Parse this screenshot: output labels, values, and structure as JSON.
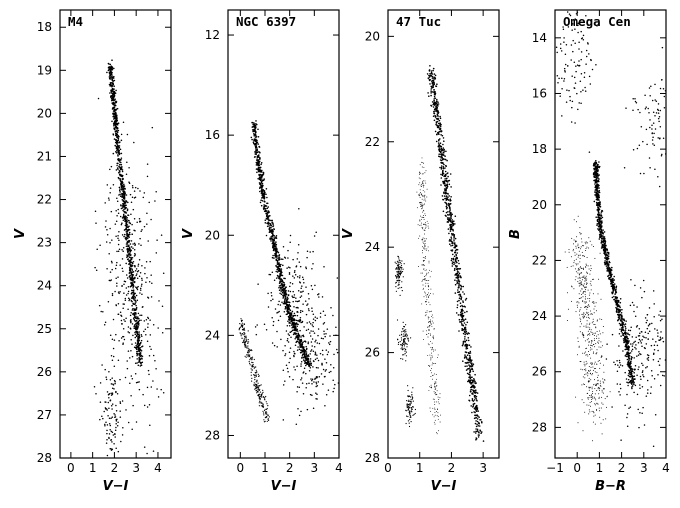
{
  "chart_data": [
    {
      "type": "scatter",
      "title": "M4",
      "xlabel": "V−I",
      "ylabel": "V",
      "xlim": [
        -0.5,
        4.6
      ],
      "ylim": [
        28,
        17.6
      ],
      "y_inverted": true,
      "xticks": [
        0,
        1,
        2,
        3,
        4
      ],
      "yticks": [
        18,
        19,
        20,
        21,
        22,
        23,
        24,
        25,
        26,
        27,
        28
      ],
      "series": [
        {
          "kind": "main-sequence",
          "values": [
            [
              1.8,
              18.9
            ],
            [
              1.95,
              19.6
            ],
            [
              2.1,
              20.4
            ],
            [
              2.3,
              21.4
            ],
            [
              2.5,
              22.4
            ],
            [
              2.75,
              23.6
            ],
            [
              3.0,
              24.8
            ],
            [
              3.2,
              25.8
            ]
          ]
        },
        {
          "kind": "field-stars-cloud",
          "values": [
            [
              2.6,
              23.5
            ],
            [
              2.8,
              24.5
            ],
            [
              2.4,
              22.5
            ],
            [
              3.2,
              25.0
            ]
          ]
        },
        {
          "kind": "faint-clump",
          "values": [
            [
              1.9,
              26.8
            ],
            [
              2.0,
              27.2
            ],
            [
              1.7,
              26.5
            ]
          ]
        }
      ]
    },
    {
      "type": "scatter",
      "title": "NGC 6397",
      "xlabel": "V−I",
      "ylabel": "V",
      "xlim": [
        -0.5,
        4.0
      ],
      "ylim": [
        28.9,
        11.0
      ],
      "y_inverted": true,
      "xticks": [
        0,
        1,
        2,
        3,
        4
      ],
      "yticks": [
        12,
        16,
        20,
        24,
        28
      ],
      "series": [
        {
          "kind": "main-sequence",
          "values": [
            [
              0.55,
              15.5
            ],
            [
              0.7,
              17.0
            ],
            [
              0.95,
              18.5
            ],
            [
              1.3,
              20.0
            ],
            [
              1.6,
              21.5
            ],
            [
              1.9,
              22.8
            ],
            [
              2.3,
              24.0
            ],
            [
              2.8,
              25.2
            ]
          ]
        },
        {
          "kind": "white-dwarf-sequence",
          "values": [
            [
              0.0,
              23.4
            ],
            [
              0.35,
              24.8
            ],
            [
              0.75,
              26.2
            ],
            [
              1.1,
              27.4
            ]
          ]
        },
        {
          "kind": "field-stars-cloud",
          "values": [
            [
              2.0,
              22.5
            ],
            [
              2.5,
              24.0
            ],
            [
              3.0,
              25.0
            ]
          ]
        }
      ]
    },
    {
      "type": "scatter",
      "title": "47 Tuc",
      "xlabel": "V−I",
      "ylabel": "V",
      "xlim": [
        0.0,
        3.5
      ],
      "ylim": [
        28.0,
        19.5
      ],
      "y_inverted": true,
      "xticks": [
        0,
        1,
        2,
        3
      ],
      "yticks": [
        20,
        22,
        24,
        26,
        28
      ],
      "series": [
        {
          "kind": "main-sequence",
          "values": [
            [
              1.35,
              20.6
            ],
            [
              1.65,
              22.0
            ],
            [
              1.95,
              23.4
            ],
            [
              2.25,
              24.8
            ],
            [
              2.55,
              26.2
            ],
            [
              2.9,
              27.6
            ]
          ]
        },
        {
          "kind": "smc-sequence",
          "values": [
            [
              1.05,
              22.5
            ],
            [
              1.15,
              24.0
            ],
            [
              1.3,
              25.5
            ],
            [
              1.55,
              27.4
            ]
          ]
        },
        {
          "kind": "white-dwarf-sequence",
          "values": [
            [
              0.35,
              24.5
            ],
            [
              0.5,
              25.8
            ],
            [
              0.7,
              27.0
            ]
          ]
        }
      ]
    },
    {
      "type": "scatter",
      "title": "Omega Cen",
      "xlabel": "B−R",
      "ylabel": "B",
      "xlim": [
        -1.0,
        4.0
      ],
      "ylim": [
        29.1,
        13.0
      ],
      "y_inverted": true,
      "xticks": [
        -1,
        0,
        1,
        2,
        3,
        4
      ],
      "yticks": [
        14,
        16,
        18,
        20,
        22,
        24,
        26,
        28
      ],
      "series": [
        {
          "kind": "main-sequence",
          "values": [
            [
              0.85,
              18.5
            ],
            [
              0.9,
              19.5
            ],
            [
              1.05,
              20.8
            ],
            [
              1.35,
              22.0
            ],
            [
              1.75,
              23.4
            ],
            [
              2.25,
              25.0
            ],
            [
              2.5,
              26.5
            ]
          ]
        },
        {
          "kind": "white-dwarf-cloud",
          "values": [
            [
              0.2,
              22.0
            ],
            [
              0.35,
              23.5
            ],
            [
              0.6,
              25.0
            ],
            [
              0.8,
              26.5
            ]
          ]
        },
        {
          "kind": "field-stars-cloud",
          "values": [
            [
              2.5,
              26.0
            ],
            [
              3.0,
              25.0
            ],
            [
              -0.2,
              15.0
            ],
            [
              3.5,
              17.0
            ]
          ]
        }
      ]
    }
  ]
}
